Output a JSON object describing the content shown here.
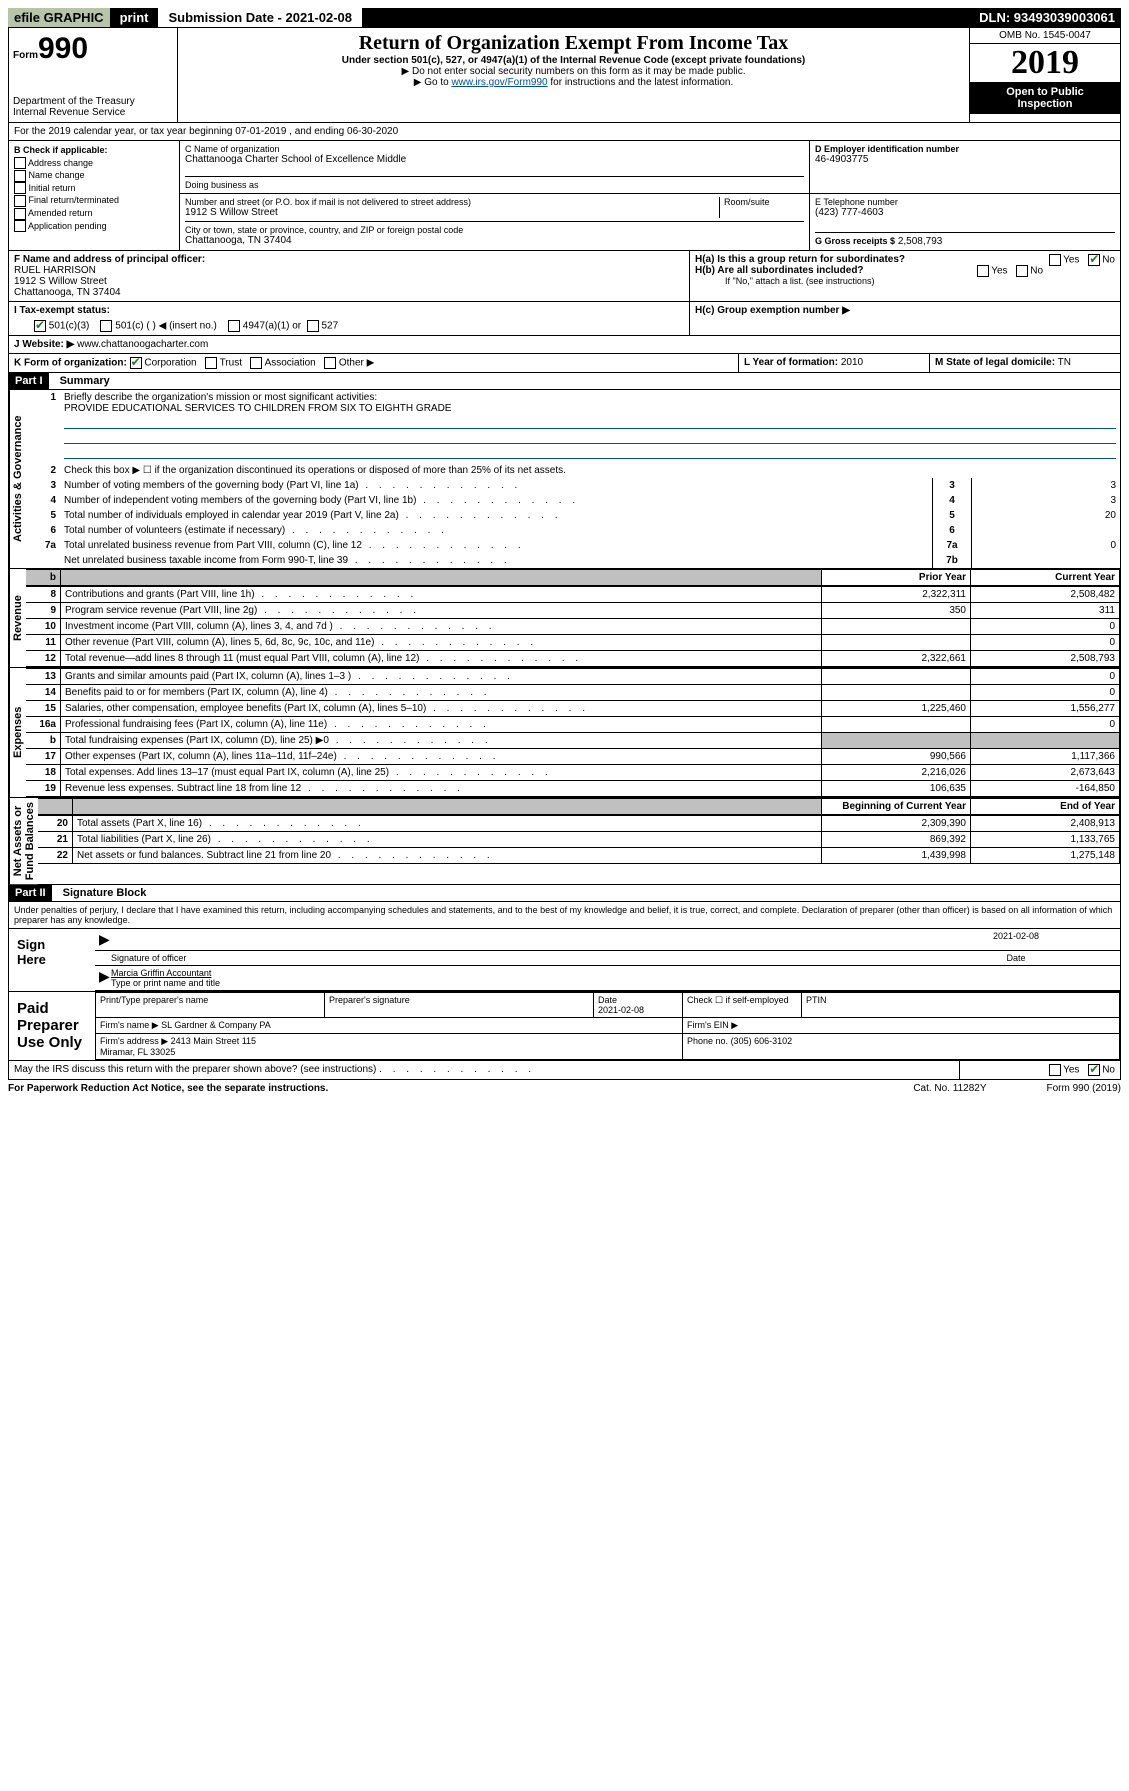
{
  "topbar": {
    "efile": "efile GRAPHIC",
    "print": "print",
    "subdate_label": "Submission Date - 2021-02-08",
    "dln": "DLN: 93493039003061"
  },
  "header": {
    "form_prefix": "Form",
    "form_num": "990",
    "dept": "Department of the Treasury\nInternal Revenue Service",
    "title": "Return of Organization Exempt From Income Tax",
    "sub": "Under section 501(c), 527, or 4947(a)(1) of the Internal Revenue Code (except private foundations)",
    "note1": "▶ Do not enter social security numbers on this form as it may be made public.",
    "note2_pre": "▶ Go to ",
    "note2_link": "www.irs.gov/Form990",
    "note2_post": " for instructions and the latest information.",
    "omb": "OMB No. 1545-0047",
    "year": "2019",
    "open": "Open to Public\nInspection"
  },
  "A": {
    "text": "For the 2019 calendar year, or tax year beginning 07-01-2019   , and ending 06-30-2020"
  },
  "B": {
    "label": "B Check if applicable:",
    "items": [
      "Address change",
      "Name change",
      "Initial return",
      "Final return/terminated",
      "Amended return",
      "Application pending"
    ]
  },
  "C": {
    "name_label": "C Name of organization",
    "name": "Chattanooga Charter School of Excellence Middle",
    "dba_label": "Doing business as",
    "addr_label": "Number and street (or P.O. box if mail is not delivered to street address)",
    "room_label": "Room/suite",
    "addr": "1912 S Willow Street",
    "city_label": "City or town, state or province, country, and ZIP or foreign postal code",
    "city": "Chattanooga, TN  37404"
  },
  "D": {
    "label": "D Employer identification number",
    "value": "46-4903775"
  },
  "E": {
    "label": "E Telephone number",
    "value": "(423) 777-4603"
  },
  "G": {
    "label": "G Gross receipts $",
    "value": "2,508,793"
  },
  "F": {
    "label": "F  Name and address of principal officer:",
    "name": "RUEL HARRISON",
    "addr1": "1912 S Willow Street",
    "addr2": "Chattanooga, TN  37404"
  },
  "H": {
    "a": "H(a)  Is this a group return for subordinates?",
    "b": "H(b)  Are all subordinates included?",
    "note": "If \"No,\" attach a list. (see instructions)",
    "c": "H(c)  Group exemption number ▶"
  },
  "I": {
    "label": "I   Tax-exempt status:",
    "o1": "501(c)(3)",
    "o2": "501(c) (  ) ◀ (insert no.)",
    "o3": "4947(a)(1) or",
    "o4": "527"
  },
  "J": {
    "label": "J   Website: ▶",
    "value": "www.chattanoogacharter.com"
  },
  "K": {
    "label": "K Form of organization:",
    "corp": "Corporation",
    "trust": "Trust",
    "assoc": "Association",
    "other": "Other ▶"
  },
  "L": {
    "label": "L Year of formation:",
    "value": "2010"
  },
  "M": {
    "label": "M State of legal domicile:",
    "value": "TN"
  },
  "part1": {
    "label": "Part I",
    "title": "Summary",
    "side_ag": "Activities & Governance",
    "side_rev": "Revenue",
    "side_exp": "Expenses",
    "side_na": "Net Assets or\nFund Balances",
    "l1": "Briefly describe the organization's mission or most significant activities:",
    "mission": "PROVIDE EDUCATIONAL SERVICES TO CHILDREN FROM SIX TO EIGHTH GRADE",
    "l2": "Check this box ▶ ☐  if the organization discontinued its operations or disposed of more than 25% of its net assets.",
    "rows_top": [
      {
        "n": "3",
        "t": "Number of voting members of the governing body (Part VI, line 1a)",
        "k": "3",
        "v": "3"
      },
      {
        "n": "4",
        "t": "Number of independent voting members of the governing body (Part VI, line 1b)",
        "k": "4",
        "v": "3"
      },
      {
        "n": "5",
        "t": "Total number of individuals employed in calendar year 2019 (Part V, line 2a)",
        "k": "5",
        "v": "20"
      },
      {
        "n": "6",
        "t": "Total number of volunteers (estimate if necessary)",
        "k": "6",
        "v": ""
      },
      {
        "n": "7a",
        "t": "Total unrelated business revenue from Part VIII, column (C), line 12",
        "k": "7a",
        "v": "0"
      },
      {
        "n": "",
        "t": "Net unrelated business taxable income from Form 990-T, line 39",
        "k": "7b",
        "v": ""
      }
    ],
    "col_prior": "Prior Year",
    "col_current": "Current Year",
    "col_begin": "Beginning of Current Year",
    "col_end": "End of Year",
    "fin_rows": [
      {
        "n": "8",
        "t": "Contributions and grants (Part VIII, line 1h)",
        "p": "2,322,311",
        "c": "2,508,482"
      },
      {
        "n": "9",
        "t": "Program service revenue (Part VIII, line 2g)",
        "p": "350",
        "c": "311"
      },
      {
        "n": "10",
        "t": "Investment income (Part VIII, column (A), lines 3, 4, and 7d )",
        "p": "",
        "c": "0"
      },
      {
        "n": "11",
        "t": "Other revenue (Part VIII, column (A), lines 5, 6d, 8c, 9c, 10c, and 11e)",
        "p": "",
        "c": "0"
      },
      {
        "n": "12",
        "t": "Total revenue—add lines 8 through 11 (must equal Part VIII, column (A), line 12)",
        "p": "2,322,661",
        "c": "2,508,793"
      },
      {
        "n": "13",
        "t": "Grants and similar amounts paid (Part IX, column (A), lines 1–3 )",
        "p": "",
        "c": "0"
      },
      {
        "n": "14",
        "t": "Benefits paid to or for members (Part IX, column (A), line 4)",
        "p": "",
        "c": "0"
      },
      {
        "n": "15",
        "t": "Salaries, other compensation, employee benefits (Part IX, column (A), lines 5–10)",
        "p": "1,225,460",
        "c": "1,556,277"
      },
      {
        "n": "16a",
        "t": "Professional fundraising fees (Part IX, column (A), line 11e)",
        "p": "",
        "c": "0"
      },
      {
        "n": "b",
        "t": "Total fundraising expenses (Part IX, column (D), line 25) ▶0",
        "p": "SHADE",
        "c": "SHADE"
      },
      {
        "n": "17",
        "t": "Other expenses (Part IX, column (A), lines 11a–11d, 11f–24e)",
        "p": "990,566",
        "c": "1,117,366"
      },
      {
        "n": "18",
        "t": "Total expenses. Add lines 13–17 (must equal Part IX, column (A), line 25)",
        "p": "2,216,026",
        "c": "2,673,643"
      },
      {
        "n": "19",
        "t": "Revenue less expenses. Subtract line 18 from line 12",
        "p": "106,635",
        "c": "-164,850"
      }
    ],
    "na_rows": [
      {
        "n": "20",
        "t": "Total assets (Part X, line 16)",
        "p": "2,309,390",
        "c": "2,408,913"
      },
      {
        "n": "21",
        "t": "Total liabilities (Part X, line 26)",
        "p": "869,392",
        "c": "1,133,765"
      },
      {
        "n": "22",
        "t": "Net assets or fund balances. Subtract line 21 from line 20",
        "p": "1,439,998",
        "c": "1,275,148"
      }
    ]
  },
  "part2": {
    "label": "Part II",
    "title": "Signature Block",
    "perjury": "Under penalties of perjury, I declare that I have examined this return, including accompanying schedules and statements, and to the best of my knowledge and belief, it is true, correct, and complete. Declaration of preparer (other than officer) is based on all information of which preparer has any knowledge.",
    "sign_here": "Sign\nHere",
    "sig_officer": "Signature of officer",
    "sig_date": "2021-02-08",
    "date_label": "Date",
    "printed": "Marcia Griffin  Accountant",
    "printed_label": "Type or print name and title",
    "paid": "Paid\nPreparer\nUse Only",
    "prep_name_label": "Print/Type preparer's name",
    "prep_sig_label": "Preparer's signature",
    "prep_date_label": "Date",
    "prep_date": "2021-02-08",
    "check_self": "Check ☐ if self-employed",
    "ptin": "PTIN",
    "firm_name_label": "Firm's name    ▶",
    "firm_name": "SL Gardner & Company PA",
    "firm_ein_label": "Firm's EIN ▶",
    "firm_addr_label": "Firm's address ▶",
    "firm_addr": "2413 Main Street 115\nMiramar, FL  33025",
    "phone_label": "Phone no.",
    "phone": "(305) 606-3102",
    "discuss": "May the IRS discuss this return with the preparer shown above? (see instructions)",
    "paperwork": "For Paperwork Reduction Act Notice, see the separate instructions.",
    "cat": "Cat. No. 11282Y",
    "formfoot": "Form 990 (2019)"
  },
  "labels": {
    "yes": "Yes",
    "no": "No",
    "b_shade": "b"
  }
}
